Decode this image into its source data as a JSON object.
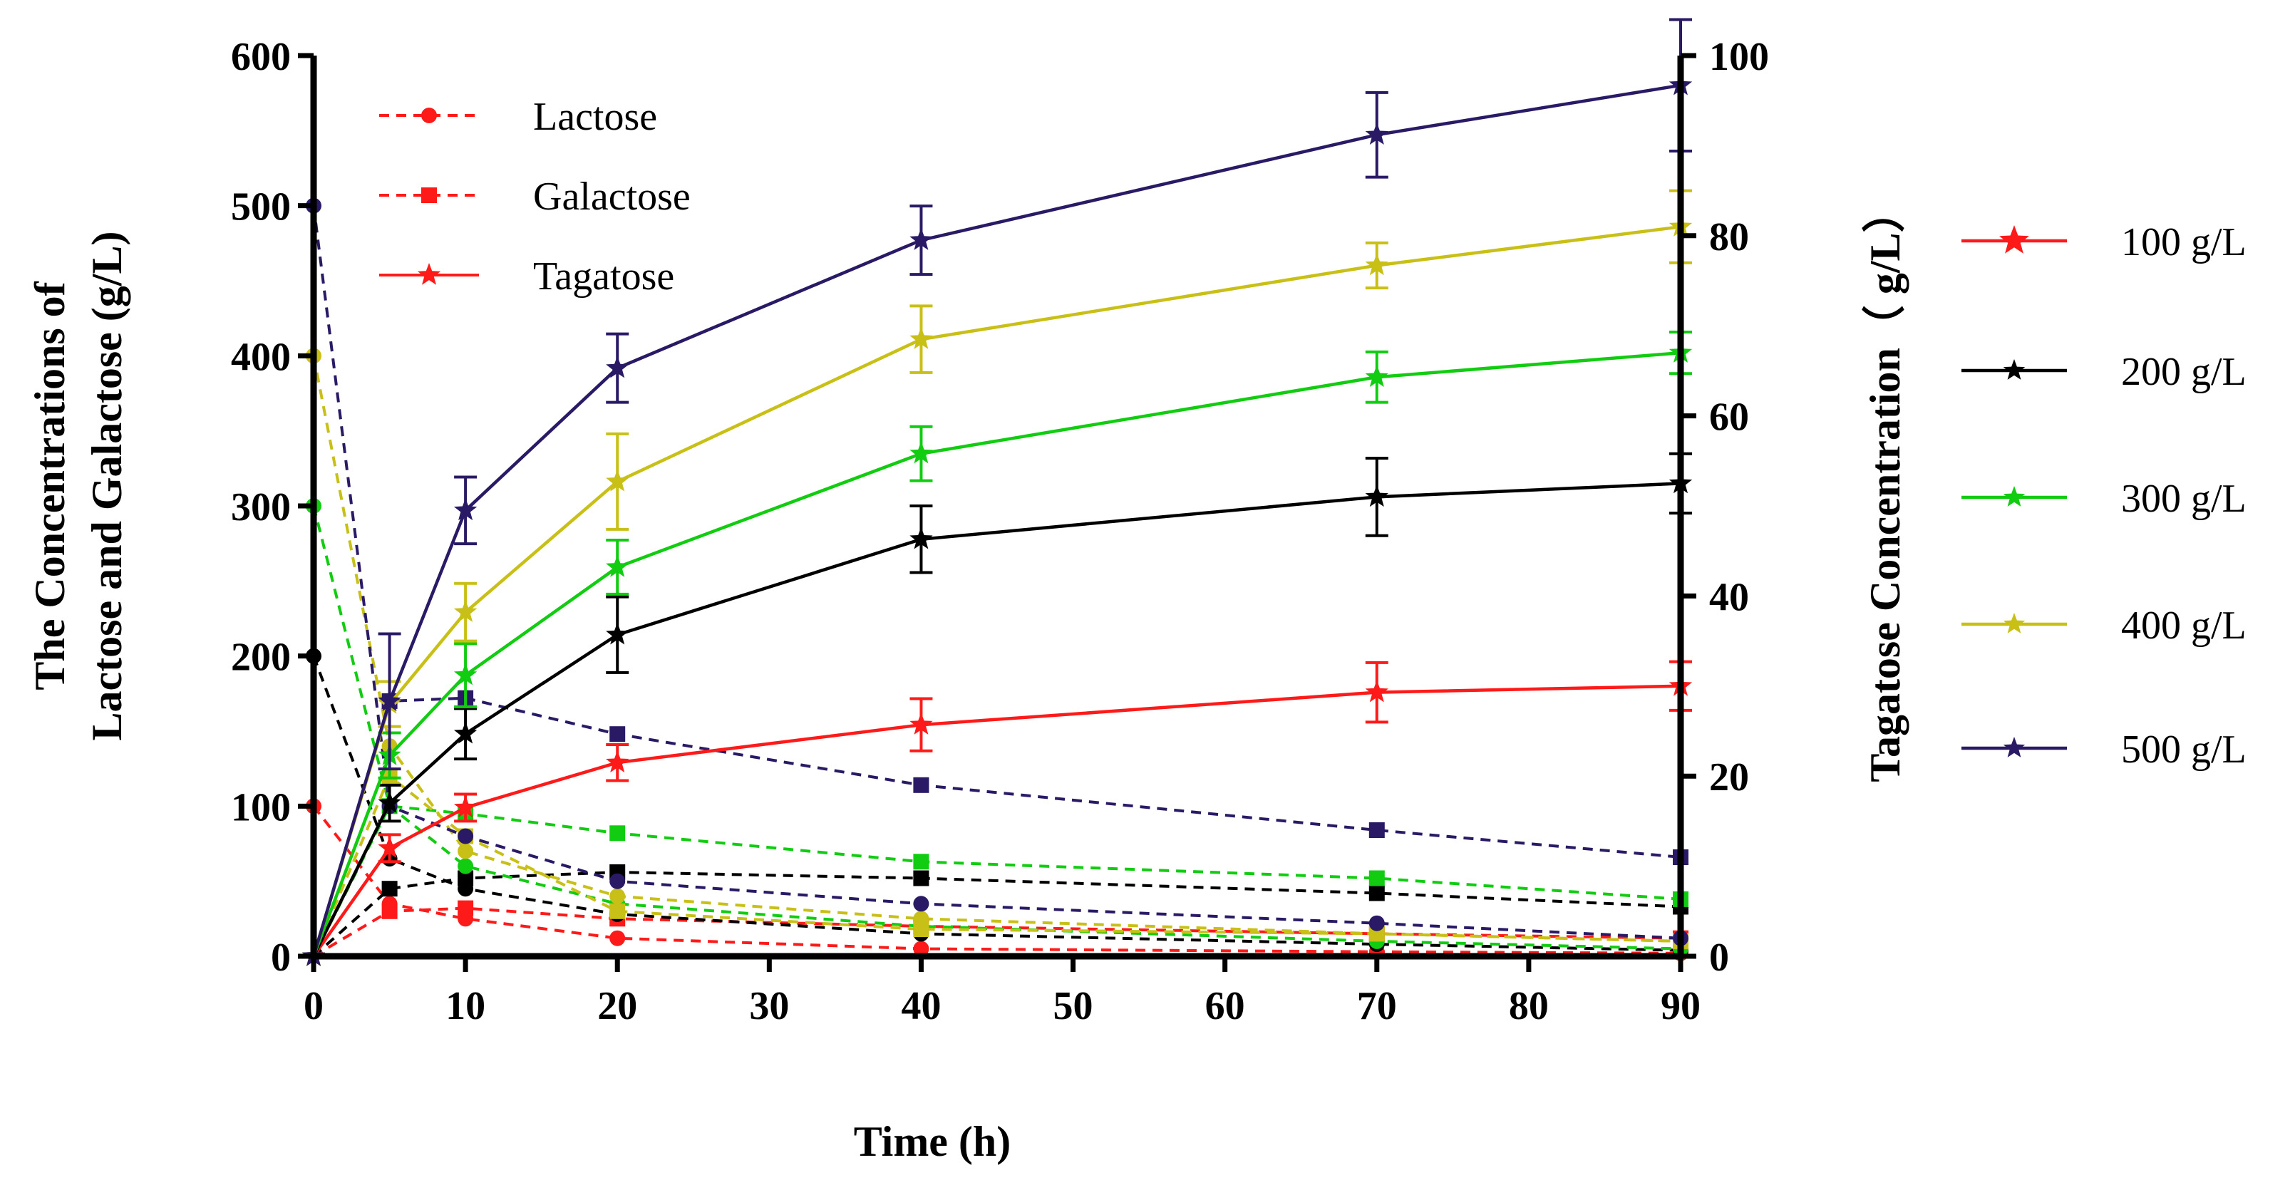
{
  "chart_data": {
    "type": "line",
    "x_label": "Time (h)",
    "y_left_label_line1": "The Concentrations of",
    "y_left_label_line2": "Lactose and Galactose  (g/L)",
    "y_right_label": "Tagatose Concentration（ g/L）",
    "x_ticks": [
      0,
      10,
      20,
      30,
      40,
      50,
      60,
      70,
      80,
      90
    ],
    "y_left_ticks": [
      0,
      100,
      200,
      300,
      400,
      500,
      600
    ],
    "y_right_ticks": [
      0,
      20,
      40,
      60,
      80,
      100
    ],
    "xlim": [
      0,
      90
    ],
    "ylim_left": [
      0,
      600
    ],
    "ylim_right": [
      0,
      100
    ],
    "x": [
      0,
      5,
      10,
      20,
      40,
      70,
      90
    ],
    "type_legend": [
      {
        "label": "Lactose",
        "style": "dashed",
        "marker": "circle"
      },
      {
        "label": "Galactose",
        "style": "dashed",
        "marker": "square"
      },
      {
        "label": "Tagatose",
        "style": "solid",
        "marker": "star"
      }
    ],
    "concentration_legend": [
      {
        "label": "100 g/L",
        "color": "#ff1a1a"
      },
      {
        "label": "200 g/L",
        "color": "#000000"
      },
      {
        "label": "300 g/L",
        "color": "#11cc11"
      },
      {
        "label": "400 g/L",
        "color": "#c8c016"
      },
      {
        "label": "500 g/L",
        "color": "#2a1a66"
      }
    ],
    "series": [
      {
        "name": "100 g/L",
        "color": "#ff1a1a",
        "lactose": [
          100,
          35,
          25,
          12,
          5,
          3,
          2
        ],
        "galactose": [
          0,
          30,
          32,
          25,
          20,
          15,
          12
        ],
        "tagatose": [
          0,
          12,
          16.5,
          21.5,
          25.7,
          29.3,
          30
        ],
        "tagatose_err": [
          0,
          1.5,
          1.5,
          2,
          2.9,
          3.3,
          2.7
        ]
      },
      {
        "name": "200 g/L",
        "color": "#000000",
        "lactose": [
          200,
          65,
          45,
          28,
          15,
          8,
          4
        ],
        "galactose": [
          0,
          45,
          52,
          56,
          52,
          42,
          33
        ],
        "tagatose": [
          0,
          17,
          24.7,
          35.7,
          46.3,
          51,
          52.5
        ],
        "tagatose_err": [
          0,
          2,
          2.8,
          4.2,
          3.7,
          4.3,
          3.3
        ]
      },
      {
        "name": "300 g/L",
        "color": "#11cc11",
        "lactose": [
          300,
          100,
          60,
          35,
          20,
          10,
          5
        ],
        "galactose": [
          0,
          100,
          95,
          82,
          63,
          52,
          38
        ],
        "tagatose": [
          0,
          22.3,
          31.2,
          43.2,
          55.8,
          64.3,
          67
        ],
        "tagatose_err": [
          0,
          2.5,
          3.5,
          3,
          3,
          2.8,
          2.3
        ]
      },
      {
        "name": "400 g/L",
        "color": "#c8c016",
        "lactose": [
          400,
          140,
          70,
          40,
          25,
          15,
          10
        ],
        "galactose": [
          0,
          120,
          80,
          30,
          18,
          15,
          10
        ],
        "tagatose": [
          0,
          28,
          38.2,
          52.7,
          68.5,
          76.7,
          81
        ],
        "tagatose_err": [
          0,
          2.5,
          3.2,
          5.3,
          3.7,
          2.5,
          4
        ]
      },
      {
        "name": "500 g/L",
        "color": "#2a1a66",
        "lactose": [
          500,
          100,
          80,
          50,
          35,
          22,
          12
        ],
        "galactose": [
          0,
          170,
          172,
          148,
          114,
          84,
          66
        ],
        "tagatose": [
          0,
          28.3,
          49.5,
          65.3,
          79.5,
          91.2,
          96.7
        ],
        "tagatose_err": [
          0,
          7.5,
          3.7,
          3.8,
          3.8,
          4.7,
          7.3
        ]
      }
    ]
  }
}
